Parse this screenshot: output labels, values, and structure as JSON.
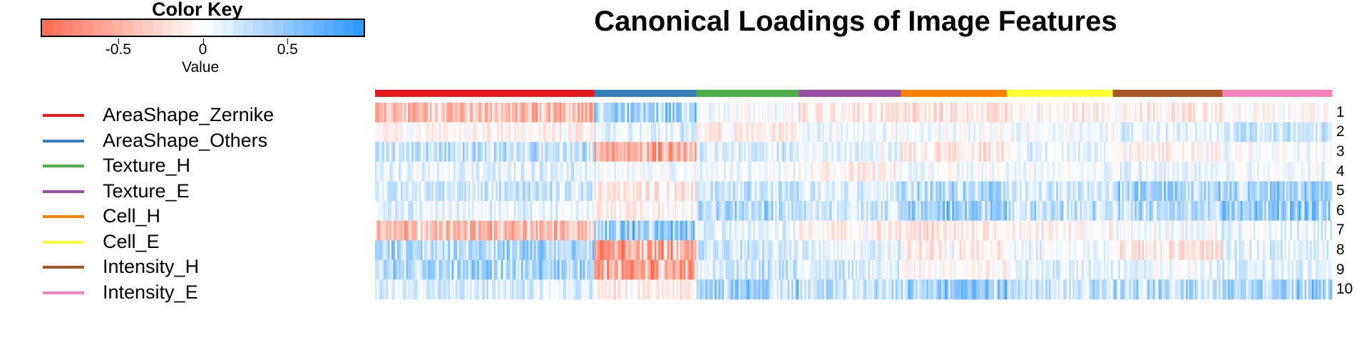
{
  "colors": {
    "negative": "#ff6347",
    "neutral": "#ffffff",
    "positive": "#1e90ff"
  },
  "chart_data": {
    "type": "heatmap",
    "title": "Canonical Loadings of Image Features",
    "value_range": [
      -1,
      1
    ],
    "color_key": {
      "title": "Color Key",
      "xlabel": "Value",
      "ticks": [
        -0.5,
        0,
        0.5
      ],
      "tick_labels": [
        "-0.5",
        "0",
        "0.5"
      ],
      "range": [
        -0.95,
        0.95
      ]
    },
    "rows": [
      "1",
      "2",
      "3",
      "4",
      "5",
      "6",
      "7",
      "8",
      "9",
      "10"
    ],
    "groups": [
      {
        "name": "AreaShape_Zernike",
        "color": "#e41a1c",
        "count": 120,
        "profile": [
          -0.55,
          -0.1,
          0.35,
          0.15,
          0.3,
          0.15,
          -0.55,
          0.45,
          0.5,
          0.2
        ]
      },
      {
        "name": "AreaShape_Others",
        "color": "#377eb8",
        "count": 56,
        "profile": [
          0.55,
          0.2,
          -0.65,
          0.05,
          -0.2,
          -0.1,
          0.65,
          -0.7,
          -0.7,
          -0.15
        ]
      },
      {
        "name": "Texture_H",
        "color": "#4daf4a",
        "count": 56,
        "profile": [
          0.05,
          -0.1,
          0.2,
          0.1,
          0.3,
          0.45,
          0.15,
          0.25,
          0.3,
          0.55
        ]
      },
      {
        "name": "Texture_E",
        "color": "#984ea3",
        "count": 56,
        "profile": [
          -0.2,
          0.05,
          0.1,
          -0.1,
          0.2,
          0.25,
          -0.15,
          0.15,
          0.2,
          0.3
        ]
      },
      {
        "name": "Cell_H",
        "color": "#ff7f00",
        "count": 58,
        "profile": [
          -0.25,
          0.05,
          -0.2,
          0.05,
          0.45,
          0.6,
          -0.2,
          -0.15,
          -0.1,
          0.6
        ]
      },
      {
        "name": "Cell_E",
        "color": "#ffff33",
        "count": 58,
        "profile": [
          -0.15,
          0.05,
          0.1,
          0.05,
          0.25,
          0.35,
          -0.1,
          0.1,
          0.15,
          0.35
        ]
      },
      {
        "name": "Intensity_H",
        "color": "#a65628",
        "count": 60,
        "profile": [
          -0.15,
          0.15,
          -0.1,
          0.1,
          0.55,
          0.4,
          0.05,
          -0.2,
          0.1,
          0.45
        ]
      },
      {
        "name": "Intensity_E",
        "color": "#f781bf",
        "count": 60,
        "profile": [
          -0.05,
          0.3,
          0.05,
          0.05,
          0.5,
          0.6,
          0.15,
          0.15,
          0.2,
          0.5
        ]
      }
    ]
  }
}
